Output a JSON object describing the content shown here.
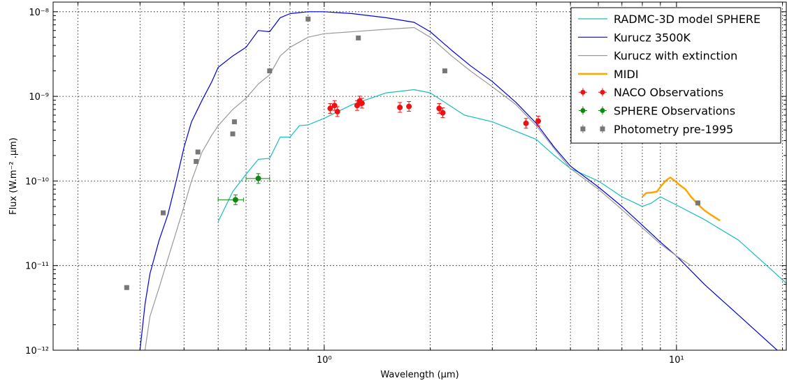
{
  "chart_data": {
    "type": "line",
    "title": "",
    "xlabel": "Wavelength (μm)",
    "ylabel": "Flux (W.m⁻² .μm)",
    "xscale": "log",
    "yscale": "log",
    "xlim": [
      0.17,
      20.5
    ],
    "ylim": [
      1e-12,
      1.3e-08
    ],
    "grid": true,
    "legend_position": "top-right",
    "x_tick_labels": [
      "10⁰",
      "10¹"
    ],
    "y_tick_labels": [
      "10⁻¹²",
      "10⁻¹¹",
      "10⁻¹⁰",
      "10⁻⁹",
      "10⁻⁸"
    ],
    "series": [
      {
        "name": "RADMC-3D model SPHERE",
        "style": "line",
        "color": "#17bebb",
        "x": [
          0.5,
          0.55,
          0.6,
          0.65,
          0.7,
          0.75,
          0.8,
          0.85,
          0.9,
          1.0,
          1.2,
          1.5,
          1.8,
          2.0,
          2.5,
          3.0,
          4.0,
          4.5,
          5.0,
          6.0,
          7.0,
          8.0,
          8.5,
          9.0,
          10.0,
          12.0,
          15.0,
          20.5
        ],
        "y": [
          3.3e-11,
          7.5e-11,
          1.2e-10,
          1.8e-10,
          1.85e-10,
          3.3e-10,
          3.3e-10,
          4.5e-10,
          4.6e-10,
          5.5e-10,
          8e-10,
          1.1e-09,
          1.2e-09,
          1.1e-09,
          6e-10,
          5e-10,
          3.1e-10,
          2e-10,
          1.4e-10,
          1e-10,
          6.5e-11,
          5e-11,
          5.5e-11,
          6.5e-11,
          5.2e-11,
          3.5e-11,
          2e-11,
          6.2e-12
        ]
      },
      {
        "name": "Kurucz 3500K",
        "style": "line",
        "color": "#0000dd",
        "x": [
          0.3,
          0.31,
          0.32,
          0.34,
          0.36,
          0.38,
          0.4,
          0.42,
          0.45,
          0.48,
          0.5,
          0.55,
          0.6,
          0.65,
          0.7,
          0.75,
          0.8,
          0.9,
          1.0,
          1.2,
          1.5,
          1.8,
          2.0,
          2.3,
          2.6,
          3.0,
          3.5,
          4.0,
          4.5,
          5.0,
          6.0,
          7.0,
          8.0,
          9.0,
          10.0,
          12.0,
          15.0,
          20.5
        ],
        "y": [
          1e-12,
          3.5e-12,
          8e-12,
          2e-11,
          4e-11,
          1e-10,
          2.5e-10,
          5e-10,
          9e-10,
          1.5e-09,
          2.2e-09,
          3e-09,
          3.8e-09,
          6e-09,
          5.8e-09,
          8.5e-09,
          9.5e-09,
          1e-08,
          1e-08,
          9.5e-09,
          8.5e-09,
          7.5e-09,
          5.8e-09,
          3.5e-09,
          2.3e-09,
          1.5e-09,
          8.5e-10,
          4.8e-10,
          2.5e-10,
          1.5e-10,
          8.5e-11,
          5e-11,
          3e-11,
          1.9e-11,
          1.3e-11,
          6e-12,
          2.6e-12,
          8e-13
        ]
      },
      {
        "name": "Kurucz with extinction",
        "style": "line",
        "color": "#999999",
        "x": [
          0.31,
          0.32,
          0.34,
          0.36,
          0.38,
          0.4,
          0.42,
          0.45,
          0.48,
          0.5,
          0.55,
          0.6,
          0.65,
          0.7,
          0.75,
          0.8,
          0.9,
          1.0,
          1.2,
          1.5,
          1.8,
          2.0,
          2.3,
          2.6,
          3.0,
          3.5,
          4.0,
          4.5,
          5.0,
          6.0,
          7.0,
          8.0,
          9.0,
          10.0,
          11.0
        ],
        "y": [
          1e-12,
          2.5e-12,
          5.5e-12,
          1.2e-11,
          2.5e-11,
          5e-11,
          1e-10,
          2.2e-10,
          3.5e-10,
          4.5e-10,
          7e-10,
          9.5e-10,
          1.4e-09,
          1.8e-09,
          3e-09,
          3.8e-09,
          5e-09,
          5.5e-09,
          5.8e-09,
          6.2e-09,
          6.5e-09,
          5e-09,
          3e-09,
          2e-09,
          1.3e-09,
          8e-10,
          4.5e-10,
          2.4e-10,
          1.4e-10,
          8e-11,
          4.6e-11,
          2.8e-11,
          1.8e-11,
          1.3e-11,
          1e-11
        ]
      },
      {
        "name": "MIDI",
        "style": "line",
        "color": "#ffa500",
        "x": [
          8.0,
          8.2,
          8.5,
          8.8,
          9.0,
          9.3,
          9.6,
          9.9,
          10.2,
          10.6,
          11.0,
          11.5,
          12.0,
          12.5,
          13.0,
          13.3
        ],
        "y": [
          6.5e-11,
          7.2e-11,
          7.3e-11,
          7.5e-11,
          8.5e-11,
          1e-10,
          1.1e-10,
          1e-10,
          9e-11,
          8e-11,
          6.5e-11,
          5.3e-11,
          4.5e-11,
          4e-11,
          3.6e-11,
          3.4e-11
        ]
      },
      {
        "name": "NACO Observations",
        "style": "errorbar",
        "color": "#ee1111",
        "x": [
          1.04,
          1.07,
          1.09,
          1.24,
          1.26,
          1.28,
          1.64,
          1.74,
          2.12,
          2.17,
          3.74,
          4.05
        ],
        "y": [
          7.2e-10,
          7.8e-10,
          6.6e-10,
          7.8e-10,
          8.8e-10,
          8.3e-10,
          7.4e-10,
          7.6e-10,
          7.2e-10,
          6.4e-10,
          4.8e-10,
          5.1e-10
        ]
      },
      {
        "name": "SPHERE Observations",
        "style": "errorbar",
        "color": "#118811",
        "x": [
          0.56,
          0.65
        ],
        "y": [
          6e-11,
          1.07e-10
        ],
        "xerr": [
          [
            0.06,
            0.03
          ],
          [
            0.05,
            0.05
          ]
        ]
      },
      {
        "name": "Photometry pre-1995",
        "style": "marker",
        "color": "#777777",
        "x": [
          0.275,
          0.349,
          0.433,
          0.438,
          0.55,
          0.556,
          0.7,
          0.9,
          1.25,
          2.2,
          11.5
        ],
        "y": [
          5.5e-12,
          4.2e-11,
          1.7e-10,
          2.2e-10,
          3.6e-10,
          5e-10,
          2e-09,
          8.2e-09,
          4.9e-09,
          2e-09,
          5.5e-11
        ]
      }
    ]
  }
}
